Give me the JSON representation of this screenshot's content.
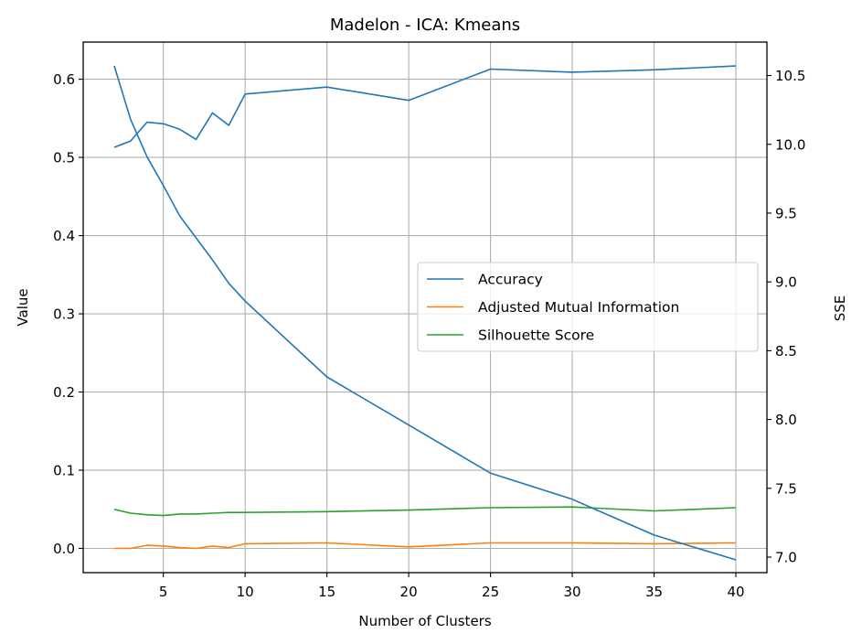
{
  "chart_data": {
    "type": "line",
    "title": "Madelon - ICA: Kmeans",
    "xlabel": "Number of Clusters",
    "ylabel": "Value",
    "y2label": "SSE",
    "xlim": [
      0.1,
      41.9
    ],
    "ylim": [
      -0.031,
      0.6475
    ],
    "y2lim": [
      6.887,
      10.743
    ],
    "grid": true,
    "legend_position": "center-right",
    "x": [
      2,
      3,
      4,
      5,
      6,
      7,
      8,
      9,
      10,
      15,
      20,
      25,
      30,
      35,
      40
    ],
    "x_ticks": [
      5,
      10,
      15,
      20,
      25,
      30,
      35,
      40
    ],
    "y_ticks": [
      "0.0",
      "0.1",
      "0.2",
      "0.3",
      "0.4",
      "0.5",
      "0.6"
    ],
    "y2_ticks": [
      "7.0",
      "7.5",
      "8.0",
      "8.5",
      "9.0",
      "9.5",
      "10.0",
      "10.5"
    ],
    "series": [
      {
        "name": "Accuracy",
        "color": "#1f77b4",
        "axis": "left",
        "values": [
          0.513,
          0.521,
          0.545,
          0.543,
          0.536,
          0.523,
          0.557,
          0.541,
          0.581,
          0.59,
          0.573,
          0.613,
          0.609,
          0.612,
          0.617
        ]
      },
      {
        "name": "Adjusted Mutual Information",
        "color": "#ff7f0e",
        "axis": "left",
        "values": [
          0.0,
          0.0,
          0.004,
          0.003,
          0.001,
          0.0,
          0.003,
          0.001,
          0.006,
          0.007,
          0.002,
          0.007,
          0.007,
          0.006,
          0.007
        ]
      },
      {
        "name": "Silhouette Score",
        "color": "#2ca02c",
        "axis": "left",
        "values": [
          0.05,
          0.045,
          0.043,
          0.042,
          0.044,
          0.044,
          0.045,
          0.046,
          0.046,
          0.047,
          0.049,
          0.052,
          0.053,
          0.048,
          0.052
        ]
      },
      {
        "name": "SSE",
        "color": "#1f77b4",
        "axis": "right",
        "values": [
          10.57,
          10.18,
          9.91,
          9.7,
          9.48,
          9.32,
          9.16,
          8.99,
          8.86,
          8.31,
          7.96,
          7.61,
          7.42,
          7.16,
          6.98
        ]
      }
    ]
  }
}
